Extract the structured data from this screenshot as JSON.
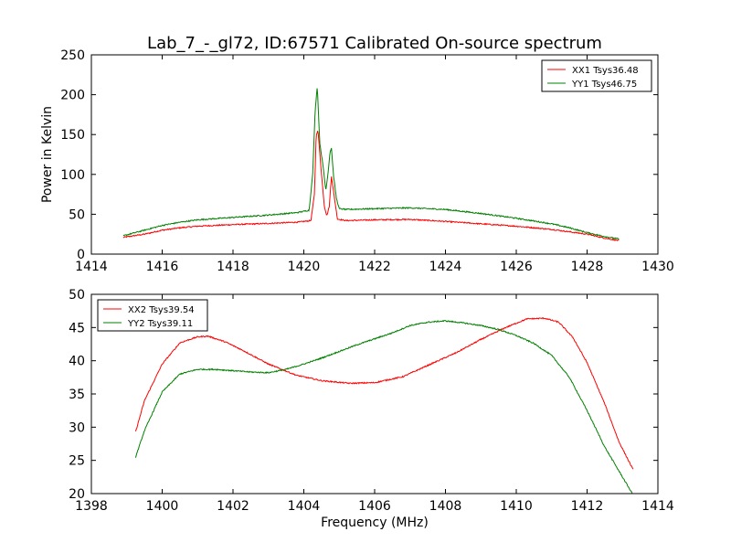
{
  "title": "Lab_7_-_gl72, ID:67571 Calibrated On-source spectrum",
  "colors": {
    "red": "#ff0000",
    "green": "#008000"
  },
  "chart_data": [
    {
      "type": "line",
      "title": "Lab_7_-_gl72, ID:67571 Calibrated On-source spectrum",
      "xlabel": "",
      "ylabel": "Power in Kelvin",
      "xlim": [
        1414,
        1430
      ],
      "ylim": [
        0,
        250
      ],
      "xticks": [
        1414,
        1416,
        1418,
        1420,
        1422,
        1424,
        1426,
        1428,
        1430
      ],
      "yticks": [
        0,
        50,
        100,
        150,
        200,
        250
      ],
      "grid": false,
      "legend": "top-right",
      "series": [
        {
          "name": "XX1 Tsys36.48",
          "color": "#ff0000",
          "x": [
            1414.9,
            1415.5,
            1416.0,
            1416.5,
            1417.0,
            1418.0,
            1419.0,
            1419.8,
            1420.2,
            1420.3,
            1420.35,
            1420.4,
            1420.5,
            1420.58,
            1420.65,
            1420.72,
            1420.78,
            1420.85,
            1420.95,
            1421.2,
            1422.0,
            1423.0,
            1424.0,
            1425.0,
            1426.0,
            1427.0,
            1427.5,
            1428.0,
            1428.5,
            1428.9
          ],
          "y": [
            21,
            25,
            30,
            33,
            35,
            37,
            38.5,
            40,
            42,
            75,
            150,
            155,
            100,
            60,
            48,
            60,
            98,
            75,
            44,
            42,
            43,
            43.5,
            41,
            38,
            35,
            31,
            28,
            25,
            20,
            17
          ]
        },
        {
          "name": "YY1 Tsys46.75",
          "color": "#008000",
          "x": [
            1414.9,
            1415.5,
            1416.0,
            1416.5,
            1417.0,
            1418.0,
            1419.0,
            1419.8,
            1420.15,
            1420.25,
            1420.32,
            1420.38,
            1420.45,
            1420.55,
            1420.62,
            1420.68,
            1420.74,
            1420.78,
            1420.84,
            1420.92,
            1421.0,
            1421.2,
            1422.0,
            1423.0,
            1424.0,
            1425.0,
            1426.0,
            1427.0,
            1427.5,
            1428.0,
            1428.5,
            1428.9
          ],
          "y": [
            23,
            30,
            36,
            40,
            43,
            46,
            49,
            52,
            55,
            100,
            180,
            211,
            140,
            108,
            80,
            100,
            128,
            133,
            98,
            70,
            57,
            56,
            57,
            58,
            56,
            51,
            45,
            38,
            33,
            27,
            22,
            19
          ]
        }
      ]
    },
    {
      "type": "line",
      "title": "",
      "xlabel": "Frequency (MHz)",
      "ylabel": "",
      "xlim": [
        1398,
        1414
      ],
      "ylim": [
        20,
        50
      ],
      "xticks": [
        1398,
        1400,
        1402,
        1404,
        1406,
        1408,
        1410,
        1412,
        1414
      ],
      "yticks": [
        20,
        25,
        30,
        35,
        40,
        45,
        50
      ],
      "grid": false,
      "legend": "top-left",
      "series": [
        {
          "name": "XX2 Tsys39.54",
          "color": "#ff0000",
          "x": [
            1399.25,
            1399.5,
            1400.0,
            1400.5,
            1401.0,
            1401.3,
            1401.8,
            1402.3,
            1403.0,
            1403.8,
            1404.5,
            1405.3,
            1406.0,
            1406.8,
            1407.5,
            1408.3,
            1409.0,
            1409.7,
            1410.3,
            1410.8,
            1411.2,
            1411.6,
            1412.0,
            1412.5,
            1412.9,
            1413.3
          ],
          "y": [
            29.3,
            34,
            39.5,
            42.7,
            43.6,
            43.7,
            42.8,
            41.5,
            39.5,
            37.8,
            37,
            36.6,
            36.7,
            37.6,
            39.3,
            41.2,
            43.2,
            45,
            46.3,
            46.4,
            45.8,
            43.5,
            39.7,
            33.5,
            27.8,
            23.6
          ]
        },
        {
          "name": "YY2 Tsys39.11",
          "color": "#008000",
          "x": [
            1399.25,
            1399.5,
            1400.0,
            1400.5,
            1401.0,
            1401.5,
            1402.0,
            1402.5,
            1403.0,
            1403.5,
            1404.0,
            1404.5,
            1405.0,
            1405.5,
            1406.0,
            1406.5,
            1407.0,
            1407.5,
            1408.0,
            1408.5,
            1409.0,
            1409.5,
            1410.0,
            1410.5,
            1411.0,
            1411.5,
            1412.0,
            1412.5,
            1413.0,
            1413.3
          ],
          "y": [
            25.5,
            29.5,
            35.3,
            38,
            38.7,
            38.7,
            38.5,
            38.3,
            38.2,
            38.7,
            39.5,
            40.4,
            41.4,
            42.4,
            43.3,
            44.2,
            45.3,
            45.8,
            46,
            45.7,
            45.3,
            44.7,
            43.8,
            42.6,
            40.8,
            37.5,
            32.5,
            27,
            22.5,
            19.8
          ]
        }
      ]
    }
  ]
}
